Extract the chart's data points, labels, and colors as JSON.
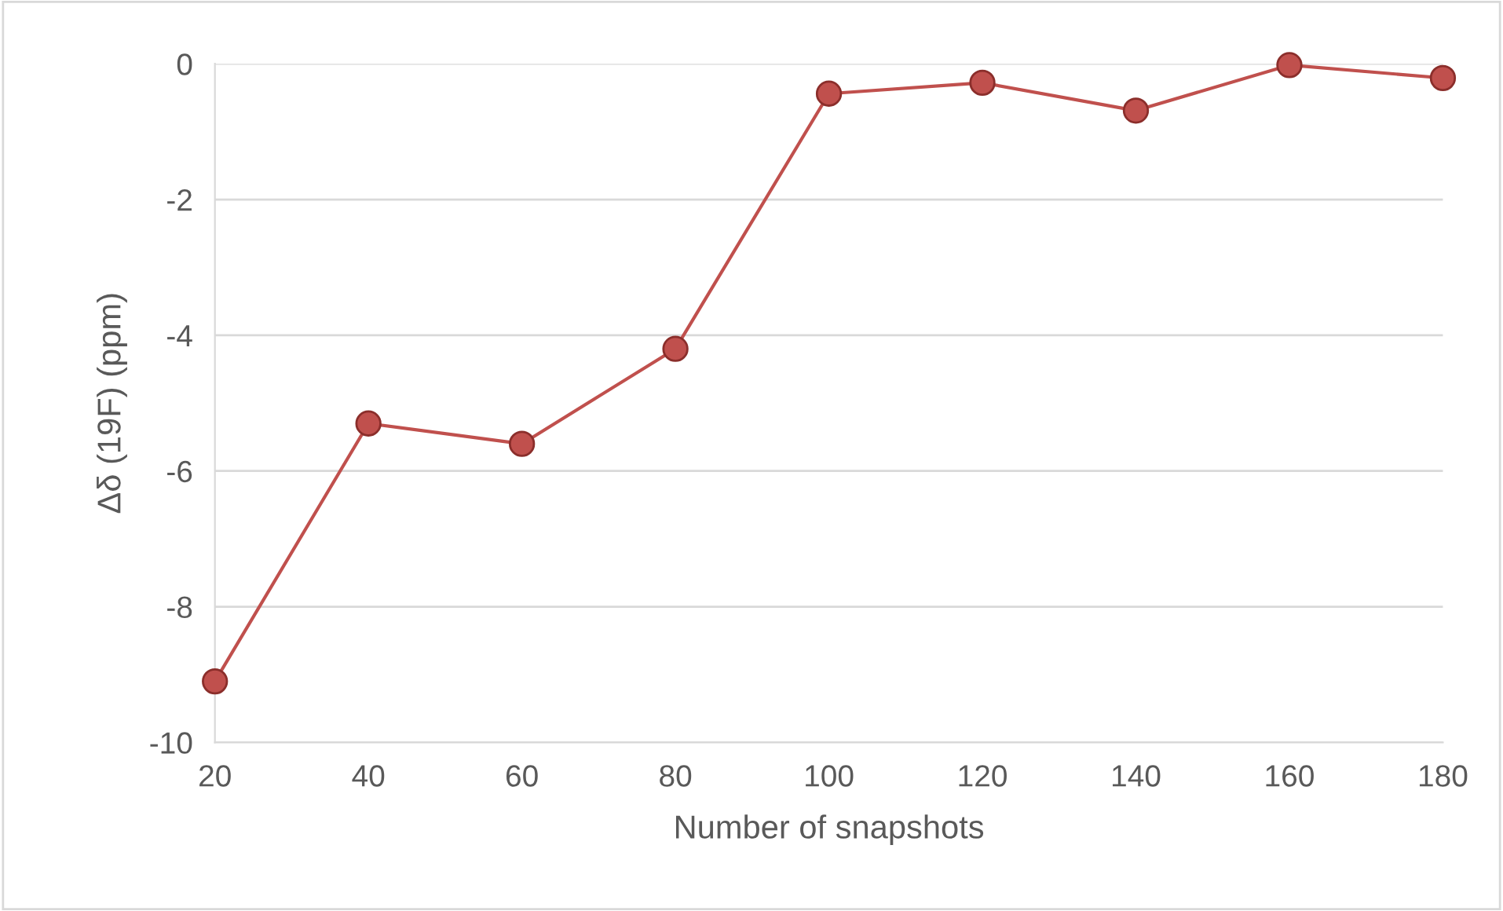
{
  "chart_data": {
    "type": "line",
    "xlabel": "Number of snapshots",
    "ylabel": "Δδ (19F) (ppm)",
    "x": [
      20,
      40,
      60,
      80,
      100,
      120,
      140,
      160,
      180
    ],
    "series": [
      {
        "color": "#c0504d",
        "values": [
          -9.1,
          -5.3,
          -5.6,
          -4.2,
          -0.44,
          -0.28,
          -0.69,
          -0.02,
          -0.21
        ]
      }
    ],
    "xlim": [
      20,
      180
    ],
    "xticks": [
      20,
      40,
      60,
      80,
      100,
      120,
      140,
      160,
      180
    ],
    "ylim": [
      -10,
      0
    ],
    "yticks": [
      -10,
      -8,
      -6,
      -4,
      -2,
      0
    ],
    "grid": "y",
    "marker": "circle",
    "line_style": "solid",
    "legend": false
  }
}
